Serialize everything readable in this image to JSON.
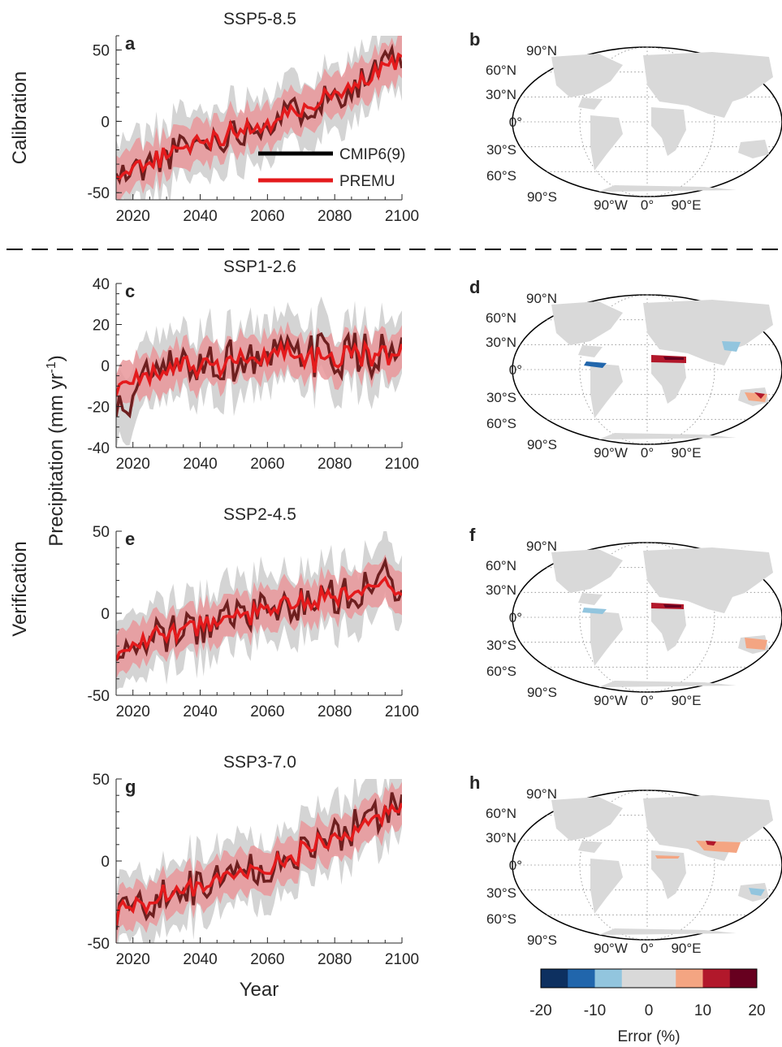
{
  "row_labels": {
    "calibration": "Calibration",
    "verification": "Verification"
  },
  "y_axis_label": "Precipitation (mm yr",
  "y_axis_label_sup": "-1",
  "y_axis_label_end": ")",
  "x_axis_label": "Year",
  "legend": [
    {
      "label": "CMIP6(9)",
      "color": "#000000"
    },
    {
      "label": "PREMU",
      "color": "#e41a1c"
    }
  ],
  "map_labels": {
    "lat": [
      "90°N",
      "60°N",
      "30°N",
      "0°",
      "30°S",
      "60°S",
      "90°S"
    ],
    "lon": [
      "90°W",
      "0°",
      "90°E"
    ]
  },
  "colorbar": {
    "label": "Error (%)",
    "ticks": [
      "-20",
      "-10",
      "0",
      "10",
      "20"
    ],
    "colors": [
      "#0d3060",
      "#2166ac",
      "#92c5de",
      "#d9d9d9",
      "#d9d9d9",
      "#f4a582",
      "#b2182b",
      "#67001f"
    ]
  },
  "colors": {
    "cmip_line": "#6e1f1f",
    "premu_line": "#e41a1c",
    "cmip_band": "#d4d4d4",
    "premu_band": "#e9969a",
    "land": "#d9d9d9"
  },
  "chart_data": [
    {
      "type": "line",
      "panel": "a",
      "title": "SSP5-8.5",
      "xlim": [
        2015,
        2100
      ],
      "ylim": [
        -55,
        60
      ],
      "xticks": [
        "2020",
        "2040",
        "2060",
        "2080",
        "2100"
      ],
      "yticks": [
        "50",
        "0",
        "-50"
      ],
      "ytick_values": [
        50,
        0,
        -50
      ],
      "x_anchors": [
        2015,
        2025,
        2035,
        2045,
        2055,
        2065,
        2075,
        2085,
        2095,
        2100
      ],
      "cmip6_mean": [
        -40,
        -30,
        -18,
        -12,
        -4,
        4,
        14,
        24,
        38,
        45
      ],
      "premu_mean": [
        -38,
        -29,
        -17,
        -11,
        -4,
        4,
        14,
        23,
        36,
        44
      ],
      "series": [
        {
          "name": "CMIP6(9)"
        },
        {
          "name": "PREMU"
        }
      ]
    },
    {
      "type": "line",
      "panel": "c",
      "title": "SSP1-2.6",
      "xlim": [
        2015,
        2100
      ],
      "ylim": [
        -40,
        40
      ],
      "xticks": [
        "2020",
        "2040",
        "2060",
        "2080",
        "2100"
      ],
      "yticks": [
        "40",
        "20",
        "0",
        "-20",
        "-40"
      ],
      "ytick_values": [
        40,
        20,
        0,
        -20,
        -40
      ],
      "x_anchors": [
        2015,
        2025,
        2035,
        2045,
        2055,
        2065,
        2075,
        2085,
        2095,
        2100
      ],
      "cmip6_mean": [
        -25,
        -5,
        0,
        2,
        3,
        4,
        5,
        5,
        6,
        6
      ],
      "premu_mean": [
        -12,
        -4,
        0,
        2,
        3,
        4,
        4,
        5,
        5,
        5
      ],
      "series": [
        {
          "name": "CMIP6(9)"
        },
        {
          "name": "PREMU"
        }
      ]
    },
    {
      "type": "line",
      "panel": "e",
      "title": "SSP2-4.5",
      "xlim": [
        2015,
        2100
      ],
      "ylim": [
        -50,
        50
      ],
      "xticks": [
        "2020",
        "2040",
        "2060",
        "2080",
        "2100"
      ],
      "yticks": [
        "50",
        "0",
        "-50"
      ],
      "ytick_values": [
        50,
        0,
        -50
      ],
      "x_anchors": [
        2015,
        2025,
        2035,
        2045,
        2055,
        2065,
        2075,
        2085,
        2095,
        2100
      ],
      "cmip6_mean": [
        -25,
        -15,
        -10,
        -5,
        0,
        5,
        8,
        12,
        22,
        15
      ],
      "premu_mean": [
        -24,
        -14,
        -9,
        -4,
        0,
        4,
        8,
        12,
        19,
        15
      ],
      "series": [
        {
          "name": "CMIP6(9)"
        },
        {
          "name": "PREMU"
        }
      ]
    },
    {
      "type": "line",
      "panel": "g",
      "title": "SSP3-7.0",
      "xlim": [
        2015,
        2100
      ],
      "ylim": [
        -50,
        50
      ],
      "xticks": [
        "2020",
        "2040",
        "2060",
        "2080",
        "2100"
      ],
      "yticks": [
        "50",
        "0",
        "-50"
      ],
      "ytick_values": [
        50,
        0,
        -50
      ],
      "x_anchors": [
        2015,
        2025,
        2035,
        2045,
        2055,
        2065,
        2075,
        2085,
        2095,
        2100
      ],
      "cmip6_mean": [
        -35,
        -25,
        -18,
        -12,
        -5,
        0,
        10,
        20,
        32,
        35
      ],
      "premu_mean": [
        -33,
        -24,
        -17,
        -11,
        -5,
        0,
        10,
        19,
        30,
        35
      ],
      "series": [
        {
          "name": "CMIP6(9)"
        },
        {
          "name": "PREMU"
        }
      ]
    }
  ],
  "maps": [
    {
      "panel": "b"
    },
    {
      "panel": "d"
    },
    {
      "panel": "f"
    },
    {
      "panel": "h"
    }
  ]
}
